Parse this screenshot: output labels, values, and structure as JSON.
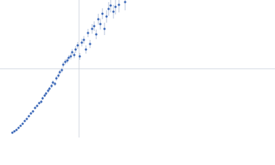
{
  "chart_data": {
    "type": "scatter",
    "xlim": [
      0,
      400
    ],
    "ylim": [
      0,
      200
    ],
    "reference_lines": {
      "x": 115,
      "y": 100,
      "color": "#cfd6df"
    },
    "series": [
      {
        "color": "#3b68b8",
        "error_color": "#b3c0d9",
        "x": [
          18,
          21,
          24,
          27,
          30,
          33,
          36,
          39,
          42,
          45,
          48,
          51,
          54,
          57,
          60,
          62,
          65,
          67,
          70,
          72,
          75,
          77,
          80,
          82,
          85,
          87,
          90,
          92,
          95,
          98,
          100,
          103,
          105,
          108,
          110,
          113,
          116,
          119,
          122,
          125,
          128,
          131,
          134,
          137,
          140,
          143,
          146,
          149,
          152,
          155,
          158,
          161,
          165,
          168,
          173,
          182
        ],
        "values": [
          7,
          9,
          11,
          14,
          17,
          20,
          24,
          27,
          31,
          35,
          38,
          43,
          46,
          50,
          52,
          57,
          61,
          64,
          68,
          71,
          75,
          80,
          78,
          86,
          90,
          95,
          98,
          106,
          110,
          112,
          116,
          118,
          124,
          120,
          128,
          134,
          118,
          138,
          142,
          128,
          152,
          136,
          158,
          162,
          150,
          172,
          165,
          180,
          158,
          176,
          187,
          192,
          183,
          190,
          193,
          197
        ],
        "errors": [
          1,
          1,
          1,
          1,
          1,
          1.5,
          1.5,
          1.5,
          1.5,
          2,
          2,
          2,
          2,
          2,
          2.5,
          2.5,
          2.5,
          2.5,
          3,
          3,
          3,
          3,
          3,
          3.5,
          3.5,
          3.5,
          3.5,
          4,
          4,
          4,
          4,
          4.5,
          4.5,
          4.5,
          5,
          5,
          5,
          5.5,
          5.5,
          6,
          6,
          6,
          7,
          7,
          7,
          8,
          8,
          8,
          9,
          9,
          10,
          10,
          10,
          11,
          11,
          12
        ]
      }
    ]
  }
}
